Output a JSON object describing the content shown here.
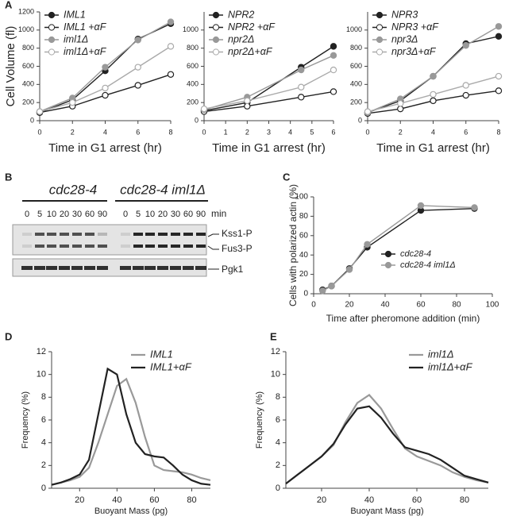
{
  "panel_labels": [
    "A",
    "B",
    "C",
    "D",
    "E"
  ],
  "blot": {
    "groups": [
      {
        "label": "cdc28-4",
        "lanes": [
          "0",
          "5",
          "10",
          "20",
          "30",
          "60",
          "90"
        ]
      },
      {
        "label": "cdc28-4 iml1Δ",
        "lanes": [
          "0",
          "5",
          "10",
          "20",
          "30",
          "60",
          "90"
        ]
      }
    ],
    "unit": "min",
    "bands": [
      "Kss1-P",
      "Fus3-P",
      "Pgk1"
    ]
  },
  "chart_data": [
    {
      "type": "line",
      "ylabel": "Cell Volume (fl)",
      "xlabel": "Time in G1 arrest (hr)",
      "x": [
        0,
        2,
        4,
        6,
        8
      ],
      "xlim": [
        0,
        8
      ],
      "xticks": [
        0,
        2,
        4,
        6,
        8
      ],
      "ylim": [
        0,
        1200
      ],
      "yticks": [
        0,
        200,
        400,
        600,
        800,
        1000,
        1200
      ],
      "markers": true,
      "legend": "upper left",
      "series": [
        {
          "name": "IML1",
          "color": "#222222",
          "fill": "#222222",
          "values": [
            90,
            230,
            550,
            900,
            1070
          ]
        },
        {
          "name": "IML1 +αF",
          "color": "#222222",
          "fill": "#ffffff",
          "values": [
            90,
            160,
            280,
            390,
            510
          ]
        },
        {
          "name": "iml1Δ",
          "color": "#999999",
          "fill": "#999999",
          "values": [
            100,
            250,
            590,
            890,
            1090
          ]
        },
        {
          "name": "iml1Δ+αF",
          "color": "#aaaaaa",
          "fill": "#ffffff",
          "values": [
            100,
            200,
            360,
            590,
            820
          ]
        }
      ]
    },
    {
      "type": "line",
      "xlabel": "Time in G1 arrest (hr)",
      "x": [
        0,
        2,
        4.5,
        6
      ],
      "xlim": [
        0,
        6
      ],
      "xticks": [
        0,
        1,
        2,
        3,
        4,
        5,
        6
      ],
      "ylim": [
        0,
        1200
      ],
      "yticks": [
        0,
        200,
        400,
        600,
        800,
        1000
      ],
      "markers": true,
      "legend": "upper left",
      "series": [
        {
          "name": "NPR2",
          "color": "#222222",
          "fill": "#222222",
          "values": [
            110,
            200,
            590,
            820
          ]
        },
        {
          "name": "NPR2 +αF",
          "color": "#222222",
          "fill": "#ffffff",
          "values": [
            100,
            160,
            260,
            320
          ]
        },
        {
          "name": "npr2Δ",
          "color": "#999999",
          "fill": "#999999",
          "values": [
            120,
            260,
            560,
            720
          ]
        },
        {
          "name": "npr2Δ+αF",
          "color": "#aaaaaa",
          "fill": "#ffffff",
          "values": [
            130,
            220,
            370,
            560
          ]
        }
      ]
    },
    {
      "type": "line",
      "xlabel": "Time in G1 arrest (hr)",
      "x": [
        0,
        2,
        4,
        6,
        8
      ],
      "xlim": [
        0,
        8
      ],
      "xticks": [
        0,
        2,
        4,
        6,
        8
      ],
      "ylim": [
        0,
        1200
      ],
      "yticks": [
        0,
        200,
        400,
        600,
        800,
        1000
      ],
      "markers": true,
      "legend": "upper left",
      "series": [
        {
          "name": "NPR3",
          "color": "#222222",
          "fill": "#222222",
          "values": [
            90,
            220,
            490,
            850,
            930
          ]
        },
        {
          "name": "NPR3 +αF",
          "color": "#222222",
          "fill": "#ffffff",
          "values": [
            80,
            130,
            220,
            280,
            330
          ]
        },
        {
          "name": "npr3Δ",
          "color": "#999999",
          "fill": "#999999",
          "values": [
            90,
            240,
            490,
            830,
            1040
          ]
        },
        {
          "name": "npr3Δ+αF",
          "color": "#aaaaaa",
          "fill": "#ffffff",
          "values": [
            100,
            190,
            290,
            390,
            490
          ]
        }
      ]
    },
    {
      "type": "line",
      "ylabel": "Cells with polarized actin (%)",
      "xlabel": "Time after pheromone addition (min)",
      "x": [
        5,
        10,
        20,
        30,
        60,
        90
      ],
      "xlim": [
        0,
        100
      ],
      "xticks": [
        0,
        20,
        40,
        60,
        80,
        100
      ],
      "ylim": [
        0,
        100
      ],
      "yticks": [
        0,
        20,
        40,
        60,
        80,
        100
      ],
      "markers": true,
      "legend": "center right",
      "series": [
        {
          "name": "cdc28-4",
          "color": "#222222",
          "fill": "#222222",
          "values": [
            4,
            8,
            26,
            48,
            86,
            88
          ]
        },
        {
          "name": "cdc28-4 iml1Δ",
          "color": "#999999",
          "fill": "#999999",
          "values": [
            3,
            8,
            25,
            51,
            91,
            89
          ]
        }
      ]
    },
    {
      "type": "line",
      "ylabel": "Frequency (%)",
      "xlabel": "Buoyant Mass (pg)",
      "x": [
        5,
        10,
        15,
        20,
        25,
        30,
        35,
        40,
        45,
        50,
        55,
        60,
        65,
        70,
        75,
        80,
        85,
        90
      ],
      "xlim": [
        5,
        90
      ],
      "xticks": [
        20,
        40,
        60,
        80
      ],
      "ylim": [
        0,
        12
      ],
      "yticks": [
        0,
        2,
        4,
        6,
        8,
        10,
        12
      ],
      "markers": false,
      "legend": "upper right",
      "series": [
        {
          "name": "IML1",
          "color": "#999999",
          "values": [
            0.3,
            0.5,
            0.7,
            1.0,
            1.8,
            4.0,
            6.5,
            9.0,
            9.6,
            7.5,
            4.5,
            2.0,
            1.6,
            1.5,
            1.4,
            1.2,
            0.9,
            0.7
          ]
        },
        {
          "name": "IML1+αF",
          "color": "#222222",
          "values": [
            0.3,
            0.5,
            0.8,
            1.2,
            2.5,
            6.5,
            10.5,
            10.0,
            6.5,
            4.0,
            3.0,
            2.8,
            2.7,
            2.0,
            1.2,
            0.7,
            0.4,
            0.3
          ]
        }
      ]
    },
    {
      "type": "line",
      "ylabel": "Frequency (%)",
      "xlabel": "Buoyant Mass (pg)",
      "x": [
        5,
        10,
        15,
        20,
        25,
        30,
        35,
        40,
        45,
        50,
        55,
        60,
        65,
        70,
        75,
        80,
        85,
        90
      ],
      "xlim": [
        5,
        90
      ],
      "xticks": [
        20,
        40,
        60,
        80
      ],
      "ylim": [
        0,
        12
      ],
      "yticks": [
        0,
        2,
        4,
        6,
        8,
        10,
        12
      ],
      "markers": false,
      "legend": "upper right",
      "series": [
        {
          "name": "iml1Δ",
          "color": "#999999",
          "values": [
            0.4,
            1.2,
            2.0,
            2.8,
            3.8,
            5.8,
            7.5,
            8.2,
            7.0,
            5.2,
            3.5,
            2.8,
            2.4,
            2.0,
            1.4,
            1.0,
            0.7,
            0.5
          ]
        },
        {
          "name": "iml1Δ+αF",
          "color": "#222222",
          "values": [
            0.4,
            1.2,
            2.0,
            2.8,
            3.9,
            5.6,
            7.0,
            7.2,
            6.2,
            4.8,
            3.6,
            3.3,
            3.0,
            2.5,
            1.8,
            1.1,
            0.8,
            0.5
          ]
        }
      ]
    }
  ]
}
